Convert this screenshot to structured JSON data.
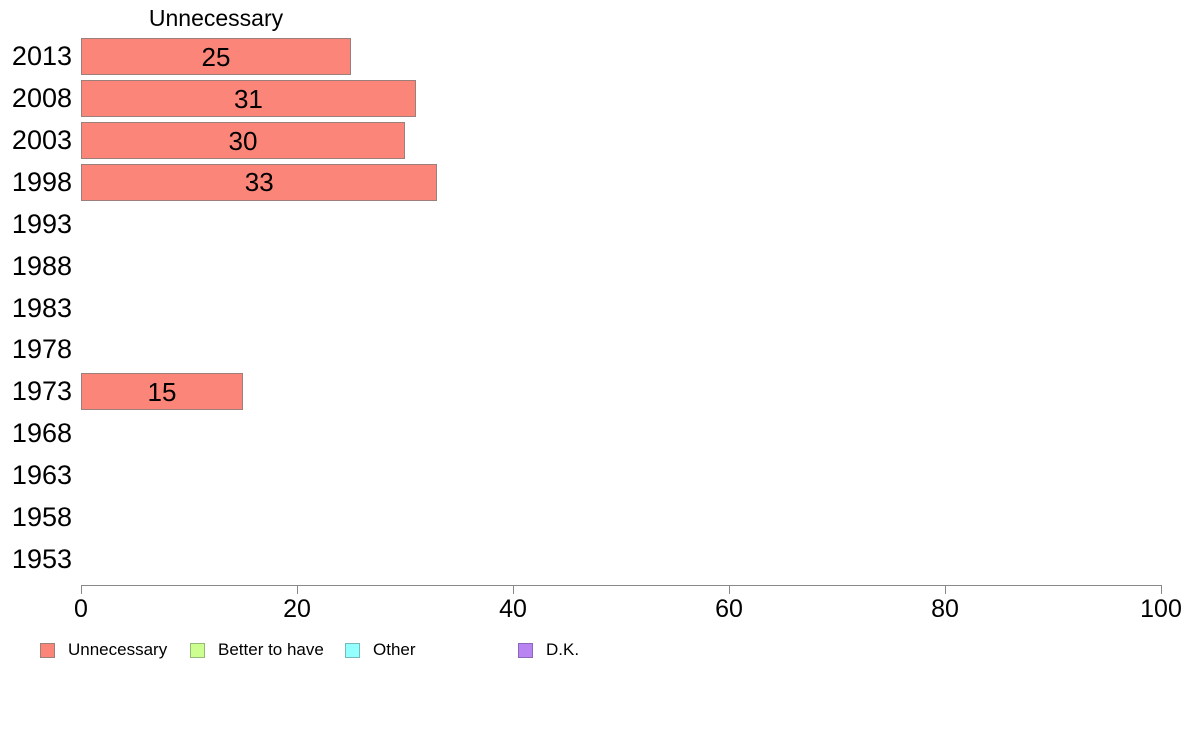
{
  "chart_data": {
    "type": "bar",
    "orientation": "horizontal",
    "title": "Unnecessary",
    "categories": [
      "2013",
      "2008",
      "2003",
      "1998",
      "1993",
      "1988",
      "1983",
      "1978",
      "1973",
      "1968",
      "1963",
      "1958",
      "1953"
    ],
    "series": [
      {
        "name": "Unnecessary",
        "fill": "#FB8578",
        "stroke": "#9a7f7b",
        "values": [
          25,
          31,
          30,
          33,
          null,
          null,
          null,
          null,
          15,
          null,
          null,
          null,
          null
        ]
      },
      {
        "name": "Better to have",
        "fill": "#CCFF90",
        "stroke": "#95b977",
        "values": [
          null,
          null,
          null,
          null,
          null,
          null,
          null,
          null,
          null,
          null,
          null,
          null,
          null
        ]
      },
      {
        "name": "Other",
        "fill": "#94FFFF",
        "stroke": "#76b9b9",
        "values": [
          null,
          null,
          null,
          null,
          null,
          null,
          null,
          null,
          null,
          null,
          null,
          null,
          null
        ]
      },
      {
        "name": "D.K.",
        "fill": "#B983F2",
        "stroke": "#8b68bb",
        "values": [
          null,
          null,
          null,
          null,
          null,
          null,
          null,
          null,
          null,
          null,
          null,
          null,
          null
        ]
      }
    ],
    "xlabel": "",
    "ylabel": "",
    "xlim": [
      0,
      100
    ],
    "x_ticks": [
      0,
      20,
      40,
      60,
      80,
      100
    ],
    "grid": false,
    "bar_value_labels": true,
    "legend_position": "bottom"
  },
  "legend": {
    "items": [
      {
        "label": "Unnecessary",
        "color": "#FB8578",
        "border": "#9a7f7b"
      },
      {
        "label": "Better to have",
        "color": "#CCFF90",
        "border": "#95b977"
      },
      {
        "label": "Other",
        "color": "#94FFFF",
        "border": "#76b9b9"
      },
      {
        "label": "D.K.",
        "color": "#B983F2",
        "border": "#8b68bb"
      }
    ]
  },
  "colors": {
    "axis": "#888888",
    "text": "#000000"
  }
}
